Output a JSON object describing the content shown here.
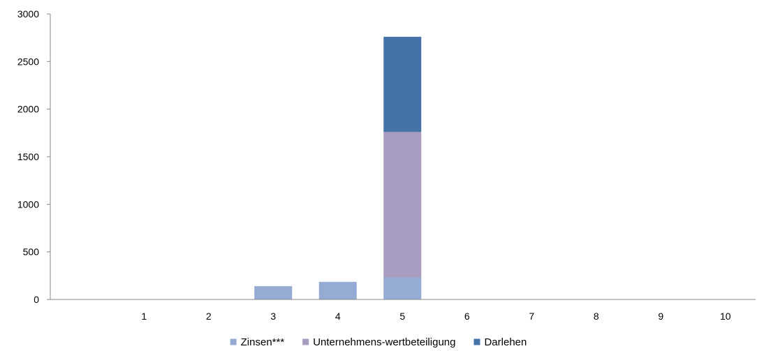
{
  "chart_data": {
    "type": "bar",
    "stacked": true,
    "categories": [
      "1",
      "2",
      "3",
      "4",
      "5",
      "6",
      "7",
      "8",
      "9",
      "10"
    ],
    "series": [
      {
        "name": "Zinsen***",
        "color": "#95abd4",
        "values": [
          0,
          0,
          140,
          185,
          230,
          0,
          0,
          0,
          0,
          0
        ]
      },
      {
        "name": "Unternehmens-wertbeteiligung",
        "color": "#a89cc1",
        "values": [
          0,
          0,
          0,
          0,
          1530,
          0,
          0,
          0,
          0,
          0
        ]
      },
      {
        "name": "Darlehen",
        "color": "#4572a7",
        "values": [
          0,
          0,
          0,
          0,
          1000,
          0,
          0,
          0,
          0,
          0
        ]
      }
    ],
    "ylim": [
      0,
      3000
    ],
    "yticks": [
      0,
      500,
      1000,
      1500,
      2000,
      2500,
      3000
    ],
    "grid": false,
    "legend_position": "bottom"
  }
}
